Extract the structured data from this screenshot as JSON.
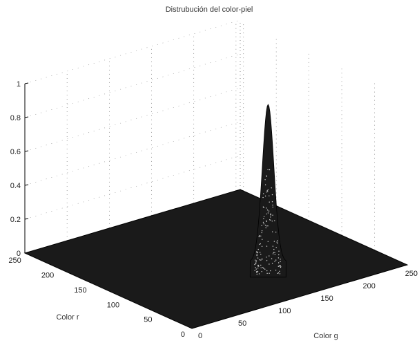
{
  "chart_data": {
    "type": "surface",
    "title": "Distrubución del color-piel",
    "xlabel": "Color g",
    "ylabel": "Color r",
    "zlabel": "",
    "x_ticks": [
      0,
      50,
      100,
      150,
      200,
      250
    ],
    "x_tick_labels": [
      "0",
      "50",
      "100",
      "150",
      "200",
      "250"
    ],
    "y_ticks": [
      0,
      50,
      100,
      150,
      200,
      250
    ],
    "y_tick_labels": [
      "0",
      "50",
      "100",
      "150",
      "200",
      "250"
    ],
    "z_ticks": [
      0,
      0.2,
      0.4,
      0.6,
      0.8,
      1
    ],
    "z_tick_labels": [
      "0",
      "0.2",
      "0.4",
      "0.6",
      "0.8",
      "1"
    ],
    "xlim": [
      0,
      255
    ],
    "ylim": [
      0,
      255
    ],
    "zlim": [
      0,
      1
    ],
    "grid": true,
    "surface_color": "#1a1a1a",
    "peak": {
      "g": 160,
      "r": 90,
      "z": 0.93
    }
  }
}
